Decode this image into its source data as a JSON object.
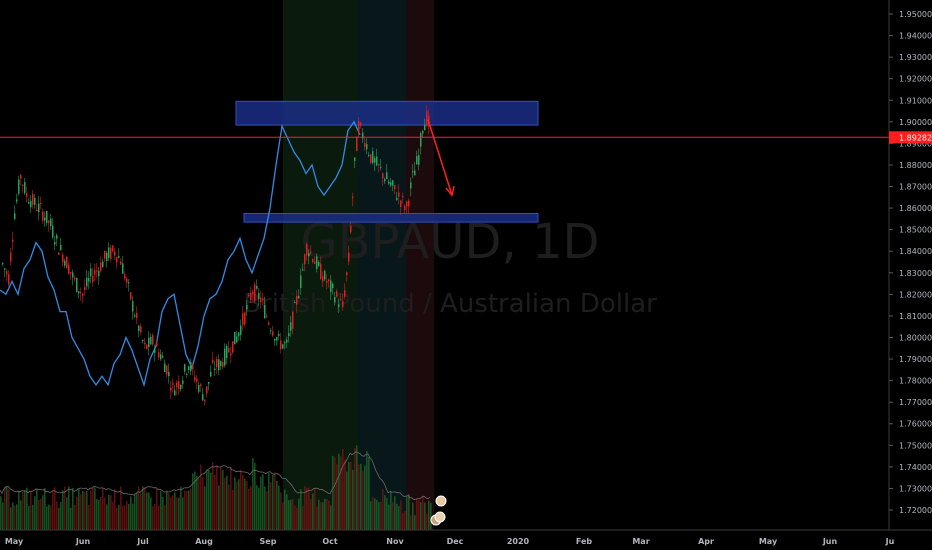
{
  "chart_data": {
    "type": "candlestick",
    "watermark": {
      "symbol": "GBPAUD, 1D",
      "description": "British Pound / Australian Dollar"
    },
    "y_axis": {
      "range": [
        1.715,
        1.955
      ],
      "ticks": [
        "1.95000",
        "1.94000",
        "1.93000",
        "1.92000",
        "1.91000",
        "1.90000",
        "1.89000",
        "1.88000",
        "1.87000",
        "1.86000",
        "1.85000",
        "1.84000",
        "1.83000",
        "1.82000",
        "1.81000",
        "1.80000",
        "1.79000",
        "1.78000",
        "1.77000",
        "1.76000",
        "1.75000",
        "1.74000",
        "1.73000",
        "1.72000"
      ]
    },
    "x_axis": {
      "labels": [
        "May",
        "Jun",
        "Jul",
        "Aug",
        "Sep",
        "Oct",
        "Nov",
        "Dec",
        "2020",
        "Feb",
        "Mar",
        "Apr",
        "May",
        "Jun",
        "Ju"
      ]
    },
    "current_price": {
      "value": 1.89282,
      "label": "1.89282",
      "color": "#ff1e1e"
    },
    "zones": [
      {
        "name": "resistance",
        "from": 1.8985,
        "to": 1.9095,
        "color": "#1c2f8c"
      },
      {
        "name": "support",
        "from": 1.8535,
        "to": 1.8575,
        "color": "#1c2f8c"
      }
    ],
    "projection_arrow": {
      "from": 1.901,
      "to": 1.866,
      "color": "#ff2020"
    },
    "comparison_series_color": "#2f8ce6",
    "up_color": "#26a65b",
    "down_color": "#e01e1e"
  }
}
